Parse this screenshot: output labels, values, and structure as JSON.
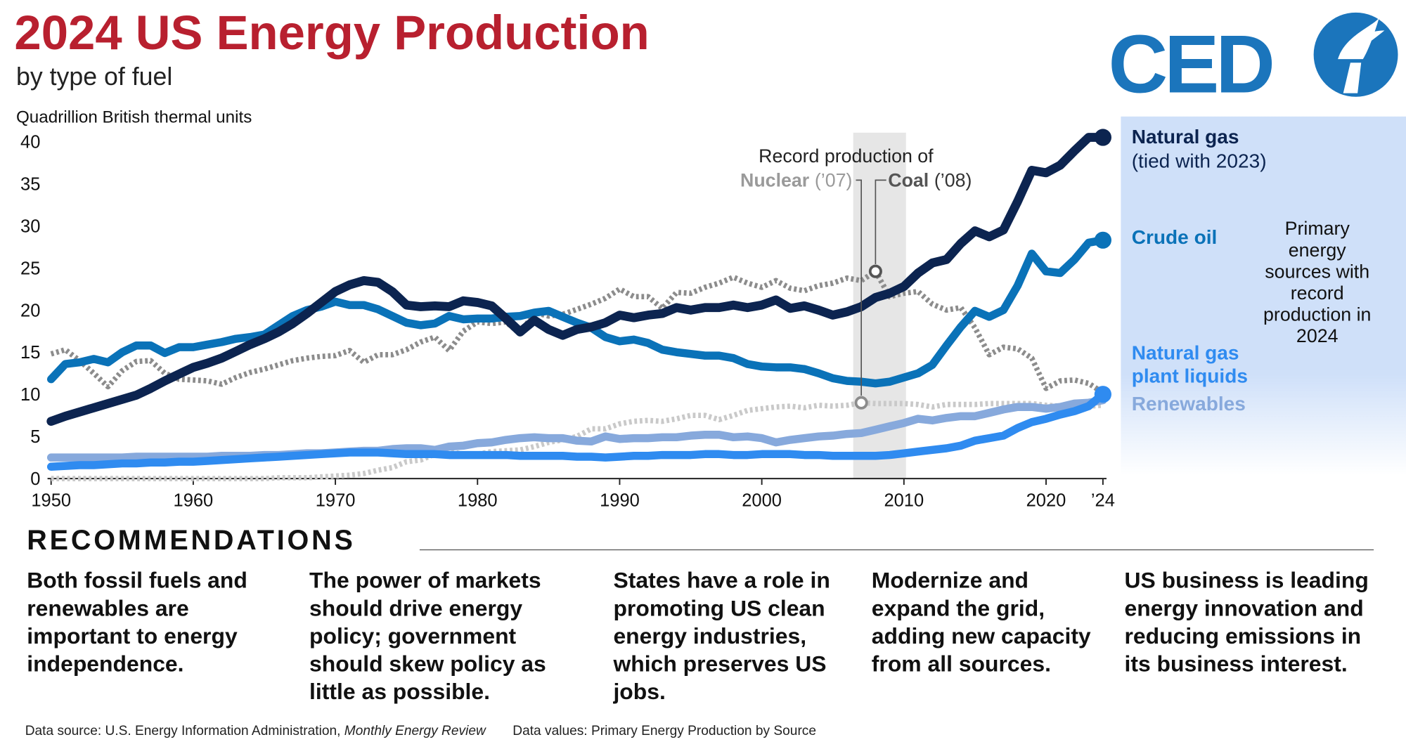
{
  "title": "2024 US Energy Production",
  "subtitle": "by type of fuel",
  "logo": {
    "text": "CED"
  },
  "chart_data": {
    "type": "line",
    "y_axis_label": "Quadrillion British thermal units",
    "xlim": [
      1950,
      2024
    ],
    "ylim": [
      0,
      40
    ],
    "xticks": [
      1950,
      1960,
      1970,
      1980,
      1990,
      2000,
      2010,
      2020,
      {
        "value": 2024,
        "label": "’24"
      }
    ],
    "yticks": [
      0,
      5,
      10,
      15,
      20,
      25,
      30,
      35,
      40
    ],
    "grid": false,
    "x": [
      1950,
      1951,
      1952,
      1953,
      1954,
      1955,
      1956,
      1957,
      1958,
      1959,
      1960,
      1961,
      1962,
      1963,
      1964,
      1965,
      1966,
      1967,
      1968,
      1969,
      1970,
      1971,
      1972,
      1973,
      1974,
      1975,
      1976,
      1977,
      1978,
      1979,
      1980,
      1981,
      1982,
      1983,
      1984,
      1985,
      1986,
      1987,
      1988,
      1989,
      1990,
      1991,
      1992,
      1993,
      1994,
      1995,
      1996,
      1997,
      1998,
      1999,
      2000,
      2001,
      2002,
      2003,
      2004,
      2005,
      2006,
      2007,
      2008,
      2009,
      2010,
      2011,
      2012,
      2013,
      2014,
      2015,
      2016,
      2017,
      2018,
      2019,
      2020,
      2021,
      2022,
      2023,
      2024
    ],
    "series": [
      {
        "name": "Natural gas",
        "color": "#0c2450",
        "style": "solid",
        "end_marker": true,
        "values": [
          6.8,
          7.4,
          7.9,
          8.4,
          8.9,
          9.4,
          9.9,
          10.7,
          11.6,
          12.4,
          13.2,
          13.7,
          14.3,
          15.1,
          15.9,
          16.6,
          17.4,
          18.4,
          19.6,
          20.9,
          22.2,
          23.0,
          23.5,
          23.3,
          22.2,
          20.6,
          20.4,
          20.5,
          20.4,
          21.1,
          20.9,
          20.5,
          19.0,
          17.4,
          18.8,
          17.7,
          17.0,
          17.7,
          18.0,
          18.5,
          19.4,
          19.1,
          19.4,
          19.6,
          20.3,
          20.0,
          20.3,
          20.3,
          20.6,
          20.3,
          20.6,
          21.2,
          20.2,
          20.5,
          20.0,
          19.4,
          19.8,
          20.4,
          21.5,
          22.0,
          22.8,
          24.4,
          25.6,
          26.0,
          27.9,
          29.4,
          28.7,
          29.5,
          32.9,
          36.6,
          36.3,
          37.2,
          38.9,
          40.5,
          40.5
        ]
      },
      {
        "name": "Crude oil",
        "color": "#0a72b8",
        "style": "solid",
        "end_marker": true,
        "values": [
          11.8,
          13.6,
          13.8,
          14.2,
          13.8,
          15.0,
          15.8,
          15.8,
          14.9,
          15.6,
          15.6,
          15.9,
          16.2,
          16.6,
          16.8,
          17.1,
          18.2,
          19.3,
          20.0,
          20.4,
          21.0,
          20.6,
          20.6,
          20.1,
          19.3,
          18.5,
          18.2,
          18.4,
          19.3,
          18.9,
          19.0,
          19.0,
          19.2,
          19.3,
          19.7,
          19.9,
          19.2,
          18.5,
          17.9,
          16.8,
          16.3,
          16.5,
          16.1,
          15.3,
          15.0,
          14.8,
          14.6,
          14.6,
          14.3,
          13.6,
          13.3,
          13.2,
          13.2,
          13.0,
          12.5,
          11.9,
          11.6,
          11.5,
          11.3,
          11.5,
          12.0,
          12.5,
          13.5,
          15.8,
          18.0,
          19.9,
          19.2,
          20.0,
          22.9,
          26.7,
          24.6,
          24.4,
          26.0,
          28.0,
          28.3
        ]
      },
      {
        "name": "Natural gas plant liquids",
        "color": "#2f8bf0",
        "style": "solid",
        "end_marker": true,
        "values": [
          1.4,
          1.5,
          1.6,
          1.6,
          1.7,
          1.8,
          1.8,
          1.9,
          1.9,
          2.0,
          2.0,
          2.1,
          2.2,
          2.3,
          2.4,
          2.5,
          2.6,
          2.7,
          2.8,
          2.9,
          3.0,
          3.1,
          3.1,
          3.1,
          3.0,
          2.9,
          2.9,
          2.9,
          2.8,
          2.8,
          2.8,
          2.8,
          2.8,
          2.7,
          2.7,
          2.7,
          2.7,
          2.6,
          2.6,
          2.5,
          2.6,
          2.7,
          2.7,
          2.8,
          2.8,
          2.8,
          2.9,
          2.9,
          2.8,
          2.8,
          2.9,
          2.9,
          2.9,
          2.8,
          2.8,
          2.7,
          2.7,
          2.7,
          2.7,
          2.8,
          3.0,
          3.2,
          3.4,
          3.6,
          3.9,
          4.5,
          4.8,
          5.1,
          6.0,
          6.7,
          7.1,
          7.6,
          8.0,
          8.6,
          10.0
        ]
      },
      {
        "name": "Renewables",
        "color": "#87a9dc",
        "style": "solid",
        "end_marker": false,
        "values": [
          2.5,
          2.5,
          2.5,
          2.5,
          2.5,
          2.5,
          2.6,
          2.6,
          2.6,
          2.6,
          2.6,
          2.6,
          2.7,
          2.7,
          2.7,
          2.8,
          2.8,
          2.9,
          3.0,
          3.0,
          3.1,
          3.2,
          3.3,
          3.3,
          3.5,
          3.6,
          3.6,
          3.4,
          3.8,
          3.9,
          4.2,
          4.3,
          4.6,
          4.8,
          4.9,
          4.8,
          4.8,
          4.5,
          4.4,
          5.0,
          4.7,
          4.8,
          4.8,
          4.9,
          4.9,
          5.1,
          5.2,
          5.2,
          4.9,
          5.0,
          4.8,
          4.3,
          4.6,
          4.8,
          5.0,
          5.1,
          5.3,
          5.4,
          5.8,
          6.2,
          6.6,
          7.1,
          6.9,
          7.2,
          7.4,
          7.4,
          7.8,
          8.2,
          8.5,
          8.5,
          8.3,
          8.5,
          8.9,
          9.0,
          9.3
        ]
      },
      {
        "name": "Coal",
        "color": "#8c8c8c",
        "style": "dotted",
        "end_marker": false,
        "values": [
          14.8,
          15.3,
          14.0,
          12.5,
          10.9,
          12.8,
          13.9,
          14.0,
          12.5,
          11.8,
          11.7,
          11.6,
          11.2,
          12.0,
          12.6,
          13.0,
          13.5,
          14.0,
          14.3,
          14.5,
          14.6,
          15.2,
          13.8,
          14.7,
          14.7,
          15.3,
          16.2,
          16.8,
          15.2,
          17.5,
          18.6,
          18.4,
          18.6,
          17.2,
          19.7,
          19.3,
          19.5,
          20.1,
          20.7,
          21.4,
          22.5,
          21.6,
          21.6,
          20.2,
          22.1,
          22.0,
          22.7,
          23.2,
          23.9,
          23.2,
          22.7,
          23.5,
          22.6,
          22.3,
          22.9,
          23.2,
          23.8,
          23.5,
          24.6,
          21.6,
          22.0,
          22.2,
          20.7,
          20.0,
          20.3,
          17.9,
          14.7,
          15.6,
          15.4,
          14.3,
          10.7,
          11.6,
          11.7,
          11.3,
          10.2
        ]
      },
      {
        "name": "Nuclear",
        "color": "#c9c9c9",
        "style": "dotted",
        "end_marker": false,
        "values": [
          0,
          0,
          0,
          0,
          0,
          0,
          0,
          0,
          0,
          0,
          0,
          0,
          0,
          0,
          0,
          0,
          0.1,
          0.1,
          0.1,
          0.2,
          0.3,
          0.4,
          0.6,
          1.0,
          1.3,
          2.0,
          2.2,
          2.9,
          3.2,
          2.9,
          2.9,
          3.2,
          3.3,
          3.4,
          3.8,
          4.3,
          4.6,
          5.0,
          5.9,
          5.9,
          6.5,
          6.8,
          6.9,
          6.8,
          7.1,
          7.5,
          7.5,
          7.0,
          7.5,
          8.1,
          8.3,
          8.5,
          8.6,
          8.4,
          8.7,
          8.6,
          8.7,
          9.0,
          8.9,
          8.9,
          8.9,
          8.8,
          8.5,
          8.8,
          8.8,
          8.8,
          8.9,
          8.9,
          8.9,
          8.9,
          8.7,
          8.6,
          8.5,
          8.6,
          8.7
        ]
      }
    ],
    "annotations": {
      "record_intro": "Record production of",
      "nuclear_year": "(’07)",
      "coal_year": "(’08)",
      "gas_note": "(tied with 2023)",
      "record_note": "Primary energy sources with record production in 2024"
    }
  },
  "recommendations": {
    "heading": "RECOMMENDATIONS",
    "items": [
      "Both fossil fuels and renewables are important to energy independence.",
      "The power of markets should drive energy policy; government should skew policy as little as possible.",
      "States have a role in promoting US clean energy industries, which preserves US jobs.",
      "Modernize and expand the grid, adding new capacity from all sources.",
      "US business is leading energy innovation and reducing emissions in its business interest."
    ]
  },
  "footer": {
    "source_prefix": "Data source: U.S. Energy Information Administration,",
    "source_title": "Monthly Energy Review",
    "values_note": "Data values: Primary Energy Production by Source"
  }
}
